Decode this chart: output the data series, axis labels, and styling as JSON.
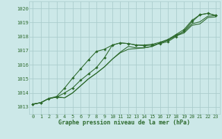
{
  "x": [
    0,
    1,
    2,
    3,
    4,
    5,
    6,
    7,
    8,
    9,
    10,
    11,
    12,
    13,
    14,
    15,
    16,
    17,
    18,
    19,
    20,
    21,
    22,
    23
  ],
  "line1": [
    1013.2,
    1013.3,
    1013.6,
    1013.75,
    1014.35,
    1015.05,
    1015.7,
    1016.35,
    1016.95,
    1017.1,
    1017.4,
    1017.55,
    1017.5,
    1017.4,
    1017.35,
    1017.4,
    1017.5,
    1017.65,
    1018.0,
    1018.4,
    1019.05,
    1019.55,
    1019.65,
    1019.5
  ],
  "line2": [
    1013.2,
    1013.3,
    1013.6,
    1013.7,
    1014.0,
    1014.35,
    1014.9,
    1015.35,
    1015.8,
    1016.5,
    1017.4,
    1017.55,
    1017.5,
    1017.4,
    1017.4,
    1017.45,
    1017.6,
    1017.8,
    1018.15,
    1018.5,
    1019.15,
    1019.55,
    1019.65,
    1019.5
  ],
  "line3": [
    1013.2,
    1013.3,
    1013.6,
    1013.7,
    1013.65,
    1014.0,
    1014.5,
    1015.0,
    1015.4,
    1015.85,
    1016.4,
    1016.9,
    1017.3,
    1017.2,
    1017.2,
    1017.3,
    1017.55,
    1017.75,
    1018.1,
    1018.35,
    1018.9,
    1019.05,
    1019.45,
    1019.5
  ],
  "line4": [
    1013.2,
    1013.3,
    1013.6,
    1013.7,
    1013.65,
    1014.0,
    1014.5,
    1015.0,
    1015.4,
    1015.85,
    1016.4,
    1016.85,
    1017.1,
    1017.15,
    1017.2,
    1017.3,
    1017.55,
    1017.75,
    1018.05,
    1018.25,
    1018.8,
    1018.9,
    1019.35,
    1019.4
  ],
  "has_marker1": true,
  "has_marker2": true,
  "has_marker3": false,
  "has_marker4": false,
  "line_color": "#2d6a2d",
  "marker": "D",
  "bg_color": "#cce8e8",
  "grid_color": "#aacccc",
  "xlabel": "Graphe pression niveau de la mer (hPa)",
  "ylim": [
    1012.5,
    1020.5
  ],
  "xlim": [
    -0.5,
    23.5
  ],
  "yticks": [
    1013,
    1014,
    1015,
    1016,
    1017,
    1018,
    1019,
    1020
  ],
  "xticks": [
    0,
    1,
    2,
    3,
    4,
    5,
    6,
    7,
    8,
    9,
    10,
    11,
    12,
    13,
    14,
    15,
    16,
    17,
    18,
    19,
    20,
    21,
    22,
    23
  ],
  "tick_fontsize": 5.0,
  "xlabel_fontsize": 6.0
}
